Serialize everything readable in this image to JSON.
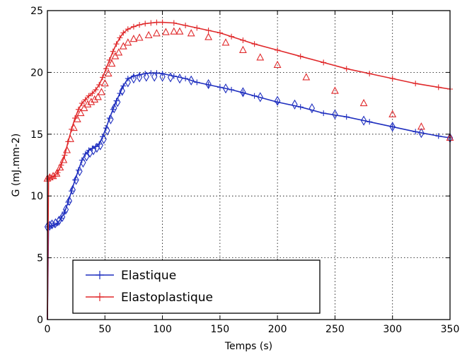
{
  "chart_data": {
    "type": "line",
    "xlabel": "Temps (s)",
    "ylabel": "G (mJ.mm-2)",
    "xlim": [
      0,
      350
    ],
    "ylim": [
      0,
      25
    ],
    "xticks": [
      0,
      50,
      100,
      150,
      200,
      250,
      300,
      350
    ],
    "yticks": [
      0,
      5,
      10,
      15,
      20,
      25
    ],
    "grid": true,
    "legend": {
      "position": "lower-left"
    },
    "series": [
      {
        "name": "Elastique",
        "color": "#1f2fbf",
        "line": {
          "x": [
            0,
            1,
            2,
            4,
            6,
            9,
            12,
            15,
            18,
            21,
            24,
            27,
            30,
            33,
            36,
            39,
            42,
            45,
            48,
            51,
            54,
            57,
            60,
            63,
            66,
            70,
            75,
            80,
            85,
            90,
            95,
            100,
            110,
            120,
            130,
            140,
            150,
            160,
            170,
            180,
            200,
            220,
            240,
            260,
            280,
            300,
            320,
            340,
            350
          ],
          "y": [
            0,
            7.5,
            7.6,
            7.6,
            7.65,
            7.8,
            8.2,
            8.7,
            9.5,
            10.4,
            11.3,
            12.1,
            12.9,
            13.4,
            13.7,
            13.85,
            14.0,
            14.2,
            14.8,
            15.5,
            16.3,
            17.0,
            17.7,
            18.3,
            18.9,
            19.5,
            19.7,
            19.8,
            19.9,
            19.95,
            19.95,
            19.9,
            19.7,
            19.5,
            19.2,
            19.0,
            18.8,
            18.6,
            18.35,
            18.1,
            17.6,
            17.2,
            16.7,
            16.4,
            16.0,
            15.6,
            15.2,
            14.85,
            14.7
          ]
        },
        "markers": {
          "x": [
            0,
            2,
            4,
            7,
            10,
            13,
            16,
            19,
            22,
            25,
            28,
            31,
            34,
            37,
            40,
            43,
            46,
            49,
            52,
            55,
            58,
            61,
            65,
            70,
            75,
            80,
            86,
            93,
            100,
            107,
            115,
            125,
            140,
            155,
            170,
            185,
            200,
            215,
            230,
            250,
            275,
            300,
            325,
            350
          ],
          "y": [
            7.5,
            7.6,
            7.7,
            7.8,
            8.0,
            8.3,
            8.9,
            9.6,
            10.5,
            11.3,
            12.0,
            12.7,
            13.2,
            13.5,
            13.7,
            13.9,
            14.1,
            14.6,
            15.3,
            16.2,
            17.1,
            17.6,
            18.5,
            19.2,
            19.5,
            19.6,
            19.65,
            19.65,
            19.65,
            19.6,
            19.5,
            19.35,
            19.05,
            18.7,
            18.4,
            18.0,
            17.7,
            17.4,
            17.1,
            16.6,
            16.1,
            15.6,
            15.1,
            14.7
          ]
        }
      },
      {
        "name": "Elastoplastique",
        "color": "#e0292b",
        "line": {
          "x": [
            0,
            1,
            2,
            4,
            6,
            9,
            12,
            15,
            18,
            21,
            24,
            27,
            30,
            33,
            36,
            39,
            42,
            45,
            48,
            51,
            54,
            57,
            60,
            63,
            66,
            70,
            75,
            80,
            85,
            90,
            95,
            100,
            110,
            120,
            130,
            140,
            150,
            160,
            170,
            180,
            200,
            220,
            240,
            260,
            280,
            300,
            320,
            340,
            350
          ],
          "y": [
            0,
            11.4,
            11.5,
            11.5,
            11.6,
            11.9,
            12.5,
            13.3,
            14.4,
            15.4,
            16.3,
            17.0,
            17.5,
            17.8,
            18.1,
            18.3,
            18.6,
            19.0,
            19.6,
            20.3,
            21.0,
            21.7,
            22.3,
            22.8,
            23.2,
            23.5,
            23.7,
            23.85,
            23.95,
            24.0,
            24.05,
            24.05,
            24.0,
            23.8,
            23.6,
            23.4,
            23.2,
            22.9,
            22.6,
            22.3,
            21.8,
            21.3,
            20.8,
            20.3,
            19.9,
            19.5,
            19.1,
            18.8,
            18.65
          ]
        },
        "markers": {
          "x": [
            0,
            2,
            5,
            8,
            11,
            14,
            17,
            20,
            23,
            26,
            29,
            32,
            35,
            38,
            41,
            44,
            47,
            50,
            53,
            56,
            59,
            62,
            66,
            70,
            75,
            80,
            88,
            95,
            103,
            110,
            115,
            125,
            140,
            155,
            170,
            185,
            200,
            225,
            250,
            275,
            300,
            325,
            350
          ],
          "y": [
            11.4,
            11.5,
            11.6,
            11.8,
            12.3,
            12.9,
            13.7,
            14.6,
            15.5,
            16.2,
            16.7,
            17.1,
            17.4,
            17.6,
            17.8,
            18.0,
            18.4,
            19.1,
            19.9,
            20.7,
            21.3,
            21.6,
            22.1,
            22.4,
            22.7,
            22.8,
            23.0,
            23.15,
            23.25,
            23.3,
            23.3,
            23.15,
            22.85,
            22.4,
            21.8,
            21.2,
            20.6,
            19.6,
            18.5,
            17.5,
            16.6,
            15.6,
            14.7
          ]
        }
      }
    ]
  }
}
